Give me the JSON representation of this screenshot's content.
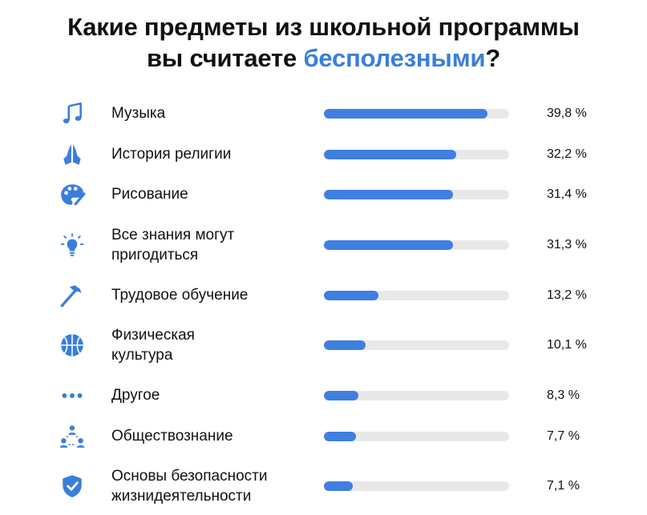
{
  "title": {
    "line1": "Какие предметы из школьной программы",
    "line2_prefix": "вы считаете ",
    "line2_accent": "бесполезными",
    "line2_suffix": "?"
  },
  "colors": {
    "accent": "#3a7edb",
    "bar": "#3f7fe0",
    "track": "#e8e8e8",
    "text": "#111111"
  },
  "chart_data": {
    "type": "bar",
    "orientation": "horizontal",
    "title": "Какие предметы из школьной программы вы считаете бесполезными?",
    "xlim": [
      0,
      45
    ],
    "grid": false,
    "categories": [
      "Музыка",
      "История религии",
      "Рисование",
      "Все знания могут пригодиться",
      "Трудовое обучение",
      "Физическая культура",
      "Другое",
      "Обществознание",
      "Основы безопасности жизнидеятельности"
    ],
    "values": [
      39.8,
      32.2,
      31.4,
      31.3,
      13.2,
      10.1,
      8.3,
      7.7,
      7.1
    ],
    "value_labels": [
      "39,8 %",
      "32,2 %",
      "31,4 %",
      "31,3 %",
      "13,2 %",
      "10,1 %",
      "8,3 %",
      "7,7 %",
      "7,1 %"
    ],
    "icons": [
      "music-note-icon",
      "praying-hands-icon",
      "palette-icon",
      "lightbulb-icon",
      "hammer-icon",
      "basketball-icon",
      "dots-icon",
      "people-icon",
      "shield-check-icon"
    ]
  },
  "rows": [
    {
      "line1": "Музыка",
      "line2": "",
      "value_label": "39,8 %",
      "icon": "music-note-icon"
    },
    {
      "line1": "История религии",
      "line2": "",
      "value_label": "32,2 %",
      "icon": "praying-hands-icon"
    },
    {
      "line1": "Рисование",
      "line2": "",
      "value_label": "31,4 %",
      "icon": "palette-icon"
    },
    {
      "line1": "Все знания могут",
      "line2": "пригодиться",
      "value_label": "31,3 %",
      "icon": "lightbulb-icon"
    },
    {
      "line1": "Трудовое обучение",
      "line2": "",
      "value_label": "13,2 %",
      "icon": "hammer-icon"
    },
    {
      "line1": "Физическая",
      "line2": "культура",
      "value_label": "10,1 %",
      "icon": "basketball-icon"
    },
    {
      "line1": "Другое",
      "line2": "",
      "value_label": "8,3 %",
      "icon": "dots-icon"
    },
    {
      "line1": "Обществознание",
      "line2": "",
      "value_label": "7,7 %",
      "icon": "people-icon"
    },
    {
      "line1": "Основы безопасности",
      "line2": "жизнидеятельности",
      "value_label": "7,1 %",
      "icon": "shield-check-icon"
    }
  ]
}
